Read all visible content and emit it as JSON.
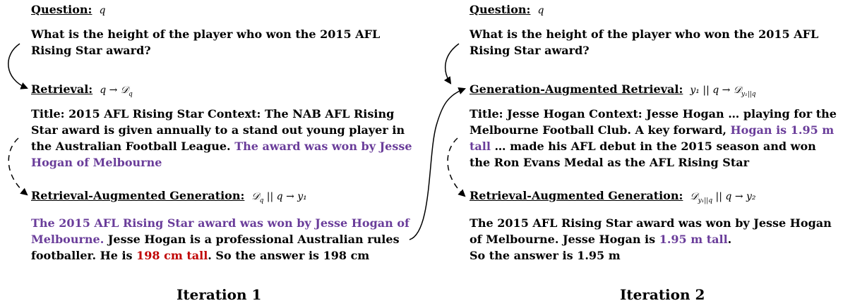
{
  "iteration1": {
    "label": "Iteration 1",
    "question_heading": "Question:",
    "question_math": "q",
    "question_text": "What is the height of the player who won the 2015 AFL Rising Star award?",
    "retrieval_heading": "Retrieval:",
    "retrieval_math": "q → 𝒟",
    "retrieval_math_sub": "q",
    "retrieval_text_plain": "Title: 2015 AFL Rising Star Context: The NAB AFL Rising Star award is given annually to a stand out young player in the Australian Football League. ",
    "retrieval_text_highlight": "The award was won by Jesse Hogan of Melbourne",
    "rag_heading": "Retrieval-Augmented Generation:",
    "rag_math": "𝒟",
    "rag_math_sub": "q",
    "rag_math_rest": " || q → y₁",
    "rag_text_highlight": "The 2015 AFL Rising Star award was won by Jesse Hogan of Melbourne.",
    "rag_text_mid": " Jesse Hogan is a professional Australian rules footballer. He is ",
    "rag_text_red": "198 cm tall",
    "rag_text_end": ". So the answer is 198 cm"
  },
  "iteration2": {
    "label": "Iteration 2",
    "question_heading": "Question:",
    "question_math": "q",
    "question_text": "What is the height of the player who won the 2015 AFL Rising Star award?",
    "gar_heading": "Generation-Augmented Retrieval:",
    "gar_math": "y₁ || q → 𝒟",
    "gar_math_sub": "y₁||q",
    "gar_text_plain": "Title: Jesse Hogan Context: Jesse Hogan … playing for the Melbourne Football Club. A key forward, ",
    "gar_text_highlight": "Hogan is 1.95 m tall",
    "gar_text_end": " … made his AFL debut in the 2015 season and won the Ron Evans Medal as the AFL Rising Star",
    "rag_heading": "Retrieval-Augmented Generation:",
    "rag_math": "𝒟",
    "rag_math_sub": "y₁||q",
    "rag_math_rest": " || q → y₂",
    "rag_text_plain": "The 2015 AFL Rising Star award was won by Jesse Hogan of Melbourne. Jesse Hogan is ",
    "rag_text_highlight": "1.95 m tall",
    "rag_text_mid": ".",
    "rag_text_end": "So the answer is 1.95 m"
  },
  "colors": {
    "highlight": "#6a3d9a",
    "error": "#c00000",
    "text": "#000000"
  }
}
